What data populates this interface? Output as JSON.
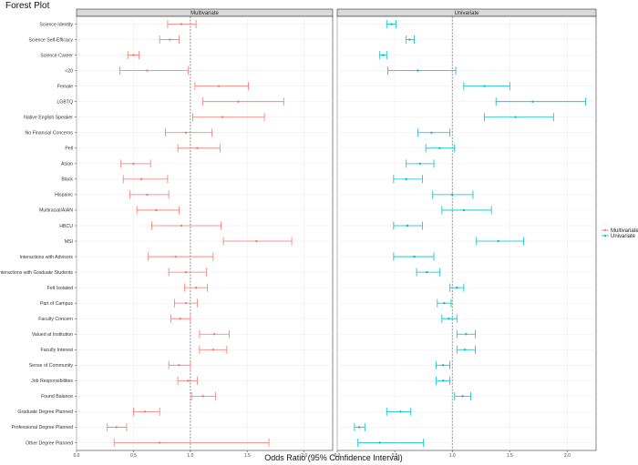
{
  "chart_data": {
    "type": "forest",
    "title": "Forest Plot",
    "xlabel": "Odds Ratio (95% Confidence Interval)",
    "xlim": [
      0,
      2.25
    ],
    "xticks": [
      "0.0",
      "0.5",
      "1.0",
      "1.5",
      "2.0"
    ],
    "reference_line": 1.0,
    "legend": {
      "position": "right",
      "entries": [
        "Multivariate",
        "Univariate"
      ]
    },
    "colors": {
      "Multivariate": "#F8766D",
      "Univariate": "#00BFC4"
    },
    "categories": [
      "Science Identity",
      "Science Self-Efficacy",
      "Science Career",
      "<20",
      "Female",
      "LGBTQ",
      "Native English Speaker",
      "No Financial Concerns",
      "Pell",
      "Asian",
      "Black",
      "Hispanic",
      "Multiracial/AIAN",
      "HBCU",
      "MSI",
      "Interactions with Advisors",
      "Interactions with Graduate Students",
      "Felt Isolated",
      "Part of Campus",
      "Faculty Concern",
      "Valued at Institution",
      "Faculty Interest",
      "Sense of Community",
      "Job Responsibilities",
      "Found Balance",
      "Graduate Degree Planned",
      "Professional Degree Planned",
      "Other Degree Planned"
    ],
    "series": [
      {
        "name": "Multivariate",
        "panel": "Multivariate",
        "estimate": [
          0.92,
          0.82,
          0.5,
          0.62,
          1.25,
          1.42,
          1.28,
          0.96,
          1.06,
          0.5,
          0.57,
          0.62,
          0.7,
          0.92,
          1.58,
          0.87,
          0.96,
          1.05,
          0.96,
          0.91,
          1.21,
          1.2,
          0.9,
          0.98,
          1.11,
          0.6,
          0.35,
          0.73
        ],
        "lower": [
          0.8,
          0.73,
          0.45,
          0.38,
          1.04,
          1.11,
          1.02,
          0.78,
          0.89,
          0.39,
          0.41,
          0.47,
          0.53,
          0.66,
          1.29,
          0.63,
          0.81,
          0.95,
          0.86,
          0.83,
          1.08,
          1.08,
          0.81,
          0.89,
          1.01,
          0.5,
          0.27,
          0.33
        ],
        "upper": [
          1.05,
          0.9,
          0.55,
          0.98,
          1.51,
          1.82,
          1.65,
          1.19,
          1.26,
          0.65,
          0.8,
          0.81,
          0.9,
          1.27,
          1.89,
          1.2,
          1.14,
          1.15,
          1.06,
          1.0,
          1.34,
          1.32,
          1.0,
          1.06,
          1.22,
          0.73,
          0.44,
          1.69
        ]
      },
      {
        "name": "Univariate",
        "panel": "Univariate",
        "estimate": [
          0.47,
          0.63,
          0.4,
          0.7,
          1.28,
          1.7,
          1.55,
          0.82,
          0.89,
          0.72,
          0.6,
          1.0,
          1.1,
          0.61,
          1.4,
          0.67,
          0.78,
          1.04,
          0.93,
          0.97,
          1.12,
          1.11,
          0.92,
          0.92,
          1.09,
          0.55,
          0.19,
          0.37
        ],
        "lower": [
          0.43,
          0.6,
          0.37,
          0.44,
          1.1,
          1.38,
          1.28,
          0.7,
          0.77,
          0.6,
          0.49,
          0.83,
          0.91,
          0.49,
          1.21,
          0.49,
          0.69,
          0.98,
          0.87,
          0.91,
          1.04,
          1.04,
          0.86,
          0.86,
          1.02,
          0.43,
          0.15,
          0.18
        ],
        "upper": [
          0.51,
          0.67,
          0.43,
          1.03,
          1.5,
          2.16,
          1.88,
          0.98,
          1.02,
          0.84,
          0.74,
          1.18,
          1.34,
          0.74,
          1.62,
          0.84,
          0.89,
          1.1,
          0.99,
          1.04,
          1.2,
          1.2,
          0.98,
          0.98,
          1.16,
          0.64,
          0.24,
          0.75
        ]
      }
    ]
  }
}
